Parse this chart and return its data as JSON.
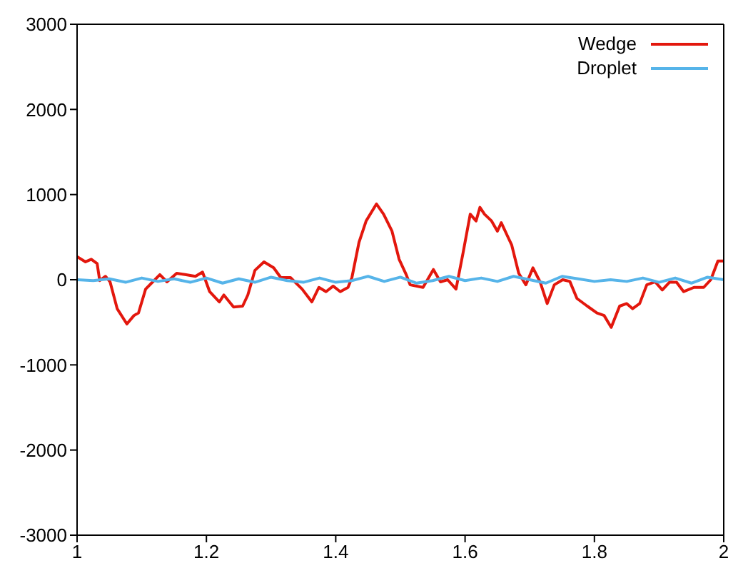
{
  "chart_data": {
    "type": "line",
    "xlim": [
      1,
      2
    ],
    "xticks": [
      1,
      1.2,
      1.4,
      1.6,
      1.8,
      2
    ],
    "ylim": [
      -3000,
      3000
    ],
    "yticks": [
      -3000,
      -2000,
      -1000,
      0,
      1000,
      2000,
      3000
    ],
    "grid": false,
    "legend": "top right",
    "marker": "none",
    "line_style": "solid",
    "series": [
      {
        "name": "Wedge",
        "color": "#e3170d",
        "x": [
          1.0,
          1.013,
          1.022,
          1.031,
          1.035,
          1.044,
          1.051,
          1.062,
          1.077,
          1.088,
          1.095,
          1.106,
          1.117,
          1.128,
          1.139,
          1.154,
          1.167,
          1.183,
          1.194,
          1.205,
          1.22,
          1.227,
          1.242,
          1.256,
          1.264,
          1.275,
          1.289,
          1.304,
          1.315,
          1.33,
          1.348,
          1.363,
          1.374,
          1.385,
          1.396,
          1.407,
          1.419,
          1.425,
          1.436,
          1.447,
          1.463,
          1.474,
          1.487,
          1.498,
          1.509,
          1.515,
          1.535,
          1.551,
          1.562,
          1.573,
          1.586,
          1.597,
          1.608,
          1.617,
          1.623,
          1.63,
          1.641,
          1.65,
          1.656,
          1.667,
          1.672,
          1.683,
          1.694,
          1.705,
          1.716,
          1.727,
          1.738,
          1.751,
          1.762,
          1.773,
          1.789,
          1.804,
          1.815,
          1.826,
          1.839,
          1.85,
          1.859,
          1.87,
          1.881,
          1.894,
          1.905,
          1.916,
          1.927,
          1.938,
          1.954,
          1.969,
          1.98,
          1.991,
          2.0
        ],
        "values": [
          270,
          210,
          240,
          190,
          -10,
          40,
          -25,
          -340,
          -520,
          -420,
          -390,
          -110,
          -25,
          60,
          -25,
          75,
          60,
          40,
          90,
          -140,
          -260,
          -180,
          -320,
          -310,
          -180,
          110,
          210,
          140,
          25,
          25,
          -110,
          -260,
          -90,
          -140,
          -75,
          -140,
          -90,
          25,
          440,
          690,
          890,
          770,
          570,
          240,
          60,
          -60,
          -90,
          120,
          -25,
          0,
          -110,
          320,
          770,
          690,
          850,
          770,
          690,
          570,
          670,
          490,
          410,
          75,
          -60,
          140,
          -25,
          -280,
          -60,
          0,
          -20,
          -220,
          -310,
          -390,
          -420,
          -560,
          -310,
          -280,
          -340,
          -280,
          -60,
          -25,
          -120,
          -30,
          -30,
          -140,
          -90,
          -90,
          0,
          220,
          220
        ]
      },
      {
        "name": "Droplet",
        "color": "#56b4e9",
        "x": [
          1.0,
          1.025,
          1.05,
          1.075,
          1.1,
          1.125,
          1.15,
          1.175,
          1.2,
          1.225,
          1.25,
          1.275,
          1.3,
          1.325,
          1.35,
          1.375,
          1.4,
          1.425,
          1.45,
          1.475,
          1.5,
          1.525,
          1.55,
          1.575,
          1.6,
          1.625,
          1.65,
          1.675,
          1.7,
          1.725,
          1.75,
          1.775,
          1.8,
          1.825,
          1.85,
          1.875,
          1.9,
          1.925,
          1.95,
          1.975,
          2.0
        ],
        "values": [
          0,
          -10,
          10,
          -30,
          20,
          -20,
          10,
          -30,
          20,
          -40,
          10,
          -30,
          30,
          -10,
          -30,
          20,
          -30,
          -10,
          40,
          -20,
          30,
          -40,
          -10,
          40,
          -10,
          20,
          -20,
          40,
          0,
          -40,
          40,
          10,
          -20,
          0,
          -20,
          20,
          -30,
          20,
          -40,
          30,
          0
        ]
      }
    ]
  }
}
